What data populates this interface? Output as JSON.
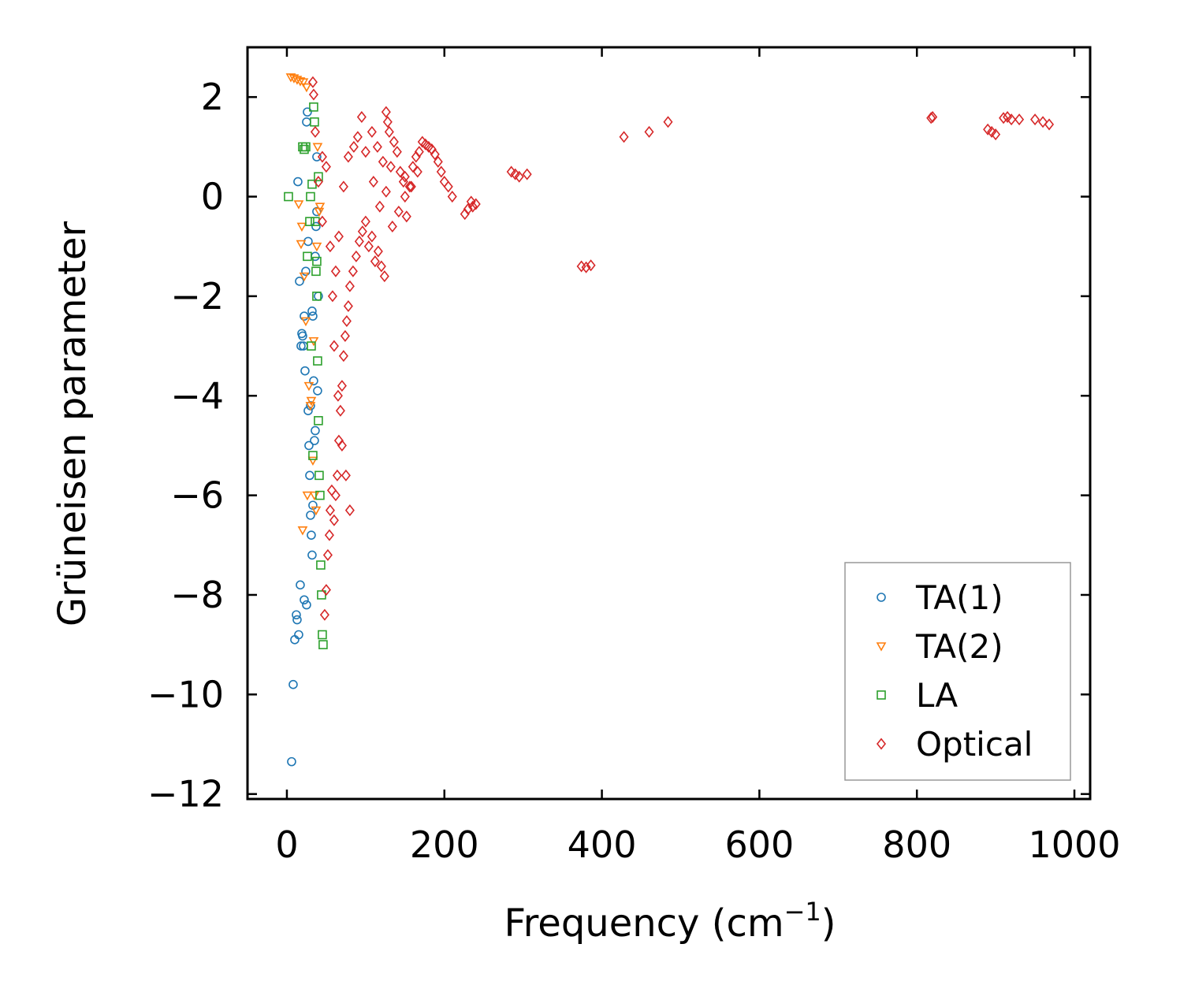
{
  "chart_data": {
    "type": "scatter",
    "title": "",
    "xlabel": "Frequency (cm",
    "xlabel_sup": "−1",
    "xlabel_close": ")",
    "ylabel": "Grüneisen parameter",
    "xlim": [
      -50,
      1020
    ],
    "ylim": [
      -12.1,
      3.0
    ],
    "xticks": [
      0,
      200,
      400,
      600,
      800,
      1000
    ],
    "yticks": [
      2,
      0,
      -2,
      -4,
      -6,
      -8,
      -10,
      -12
    ],
    "ytick_labels": [
      "2",
      "0",
      "−2",
      "−4",
      "−6",
      "−8",
      "−10",
      "−12"
    ],
    "legend_position": "lower-right",
    "series": [
      {
        "name": "TA(1)",
        "marker": "circle",
        "color": "#1f77b4",
        "x": [
          6,
          8,
          10,
          12,
          13,
          15,
          17,
          18,
          20,
          22,
          23,
          24,
          25,
          26,
          27,
          28,
          29,
          30,
          31,
          32,
          33,
          34,
          35,
          36,
          37,
          38,
          39,
          40,
          14,
          16,
          19,
          21,
          33,
          36,
          38,
          32,
          30,
          27,
          25,
          22
        ],
        "y": [
          -11.35,
          -9.8,
          -8.9,
          -8.4,
          -8.5,
          -8.8,
          -7.8,
          -3.0,
          -2.8,
          -2.4,
          -3.5,
          -1.5,
          1.5,
          1.7,
          -4.3,
          -5.0,
          -5.6,
          -6.4,
          -6.8,
          -7.2,
          -6.2,
          -3.7,
          -4.9,
          -4.7,
          -0.6,
          0.8,
          -3.9,
          -2.0,
          0.3,
          -1.7,
          -2.75,
          -3.0,
          -2.4,
          -1.2,
          -0.3,
          -2.3,
          -4.2,
          -0.9,
          -8.2,
          -8.1
        ]
      },
      {
        "name": "TA(2)",
        "marker": "triangle-down",
        "color": "#ff7f0e",
        "x": [
          5,
          9,
          13,
          17,
          21,
          25,
          15,
          19,
          22,
          24,
          28,
          30,
          33,
          35,
          37,
          39,
          41,
          20,
          26,
          31,
          34,
          38,
          42,
          18
        ],
        "y": [
          2.4,
          2.38,
          2.35,
          2.32,
          2.3,
          2.2,
          -0.15,
          -0.6,
          -1.6,
          -2.5,
          -3.8,
          -4.2,
          -5.3,
          -6.0,
          -6.3,
          1.0,
          -0.3,
          -6.7,
          -6.0,
          -4.1,
          -2.9,
          -1.0,
          -0.2,
          -0.95
        ]
      },
      {
        "name": "LA",
        "marker": "square",
        "color": "#2ca02c",
        "x": [
          2,
          20,
          22,
          24,
          26,
          30,
          32,
          34,
          35,
          36,
          37,
          38,
          39,
          40,
          41,
          42,
          43,
          44,
          45,
          46,
          33,
          31,
          29,
          38,
          40
        ],
        "y": [
          0.0,
          1.0,
          0.95,
          1.0,
          -1.2,
          0.0,
          0.25,
          1.8,
          1.5,
          -0.5,
          -1.5,
          -2.0,
          -3.3,
          -4.5,
          -5.6,
          -6.0,
          -7.4,
          -8.0,
          -8.8,
          -9.0,
          -5.2,
          -3.0,
          -0.5,
          -1.3,
          0.4
        ]
      },
      {
        "name": "Optical",
        "marker": "diamond",
        "color": "#d62728",
        "x": [
          33,
          34,
          36,
          40,
          45,
          48,
          50,
          52,
          54,
          55,
          57,
          60,
          62,
          64,
          66,
          68,
          70,
          72,
          74,
          76,
          78,
          80,
          84,
          88,
          92,
          96,
          100,
          104,
          108,
          112,
          116,
          120,
          124,
          126,
          128,
          130,
          132,
          136,
          140,
          144,
          148,
          150,
          152,
          156,
          160,
          164,
          168,
          172,
          176,
          180,
          184,
          188,
          192,
          196,
          200,
          205,
          210,
          226,
          230,
          234,
          236,
          240,
          285,
          290,
          295,
          305,
          374,
          380,
          386,
          428,
          460,
          484,
          818,
          820,
          890,
          895,
          900,
          910,
          915,
          920,
          930,
          950,
          960,
          968,
          45,
          50,
          55,
          60,
          65,
          70,
          75,
          80,
          58,
          62,
          66,
          72,
          78,
          85,
          90,
          95,
          110,
          118,
          126,
          134,
          142,
          150,
          158,
          166,
          100,
          108,
          115,
          122
        ],
        "y": [
          2.3,
          2.05,
          1.3,
          0.3,
          -0.5,
          -8.4,
          -7.9,
          -7.2,
          -6.8,
          -6.3,
          -5.9,
          -6.5,
          -6.0,
          -5.6,
          -4.9,
          -4.3,
          -3.8,
          -3.2,
          -2.8,
          -2.5,
          -2.2,
          -1.8,
          -1.5,
          -1.2,
          -0.9,
          -0.7,
          -0.5,
          -1.0,
          -0.8,
          -1.3,
          -1.1,
          -1.4,
          -1.6,
          1.7,
          1.5,
          1.3,
          0.6,
          1.1,
          0.9,
          0.5,
          0.3,
          0.0,
          -0.4,
          0.2,
          0.6,
          0.8,
          0.9,
          1.1,
          1.05,
          1.0,
          0.95,
          0.85,
          0.7,
          0.5,
          0.3,
          0.2,
          0.0,
          -0.35,
          -0.25,
          -0.1,
          -0.2,
          -0.15,
          0.5,
          0.45,
          0.4,
          0.45,
          -1.4,
          -1.42,
          -1.38,
          1.2,
          1.3,
          1.5,
          1.58,
          1.6,
          1.35,
          1.3,
          1.25,
          1.58,
          1.6,
          1.55,
          1.55,
          1.55,
          1.5,
          1.45,
          0.8,
          0.6,
          -1.0,
          -3.0,
          -4.0,
          -5.0,
          -5.6,
          -6.3,
          -2.0,
          -1.5,
          -0.8,
          0.2,
          0.8,
          1.0,
          1.2,
          1.6,
          0.3,
          -0.2,
          0.1,
          -0.6,
          -0.3,
          0.4,
          0.2,
          0.5,
          0.9,
          1.3,
          1.0,
          0.7
        ]
      }
    ]
  }
}
